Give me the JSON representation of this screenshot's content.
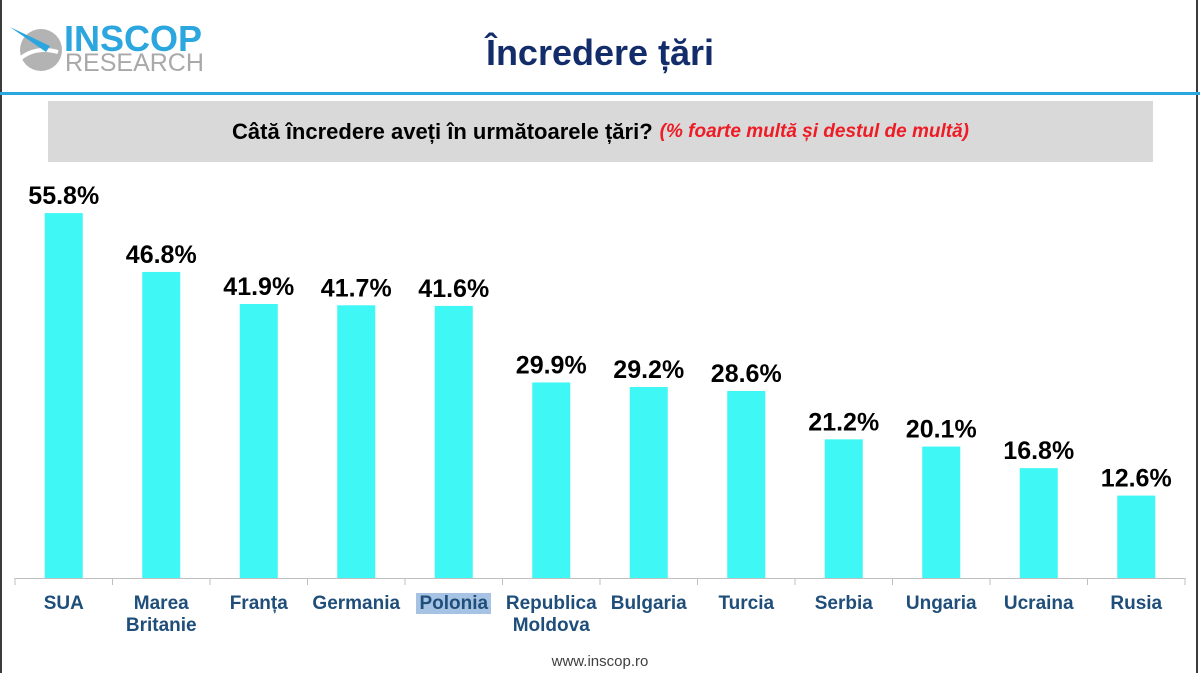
{
  "header": {
    "logo": {
      "icon": "inscop-logo-icon",
      "name_top": "INSCOP",
      "name_bottom": "RESEARCH"
    },
    "title": "Încredere țări"
  },
  "chart_data": {
    "type": "bar",
    "title": "Câtă încredere aveți în următoarele țări?",
    "subtitle": "(% foarte multă și destul de multă)",
    "categories": [
      "SUA",
      "Marea Britanie",
      "Franța",
      "Germania",
      "Polonia",
      "Republica Moldova",
      "Bulgaria",
      "Turcia",
      "Serbia",
      "Ungaria",
      "Ucraina",
      "Rusia"
    ],
    "values": [
      55.8,
      46.8,
      41.9,
      41.7,
      41.6,
      29.9,
      29.2,
      28.6,
      21.2,
      20.1,
      16.8,
      12.6
    ],
    "value_suffix": "%",
    "highlighted_index": 4
  },
  "footer": {
    "url": "www.inscop.ro"
  },
  "colors": {
    "brand": "#2ba6de",
    "title": "#132d6b",
    "bar": "#3ff7f5",
    "note": "#ee1c25",
    "category_text": "#1f4e7a",
    "banner_bg": "#d9d9d9",
    "selection": "#a7c3e3",
    "axis": "#bfbfbf"
  }
}
